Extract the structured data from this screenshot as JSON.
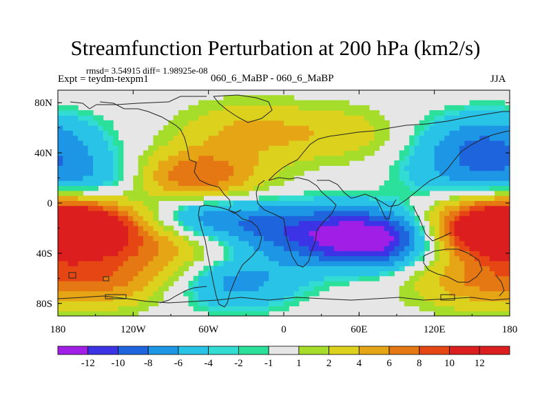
{
  "chart_data": {
    "type": "heatmap",
    "title": "Streamfunction Perturbation at 200 hPa (km2/s)",
    "rmsd_label": "rmsd= 3.54915 diff= 1.98925e-08",
    "experiment_label": "Expt = teydm-texpm1",
    "center_label": "060_6_MaBP - 060_6_MaBP",
    "season": "JJA",
    "x_ticks": [
      "180",
      "120W",
      "60W",
      "0",
      "60E",
      "120E",
      "180"
    ],
    "y_ticks": [
      "80N",
      "40N",
      "0",
      "40S",
      "80S"
    ],
    "xlim": [
      -180,
      180
    ],
    "ylim": [
      -90,
      90
    ],
    "colorbar": {
      "labels": [
        "-12",
        "-10",
        "-8",
        "-6",
        "-4",
        "-2",
        "-1",
        "1",
        "2",
        "4",
        "6",
        "8",
        "10",
        "12"
      ],
      "colors": [
        "#a01ee6",
        "#3c32e6",
        "#1e64dc",
        "#1e96e6",
        "#28c3e6",
        "#32dcd2",
        "#2ae09a",
        "#e6e6e6",
        "#a6dc2a",
        "#dcd21e",
        "#e6a514",
        "#e67814",
        "#e64614",
        "#dc1e1e"
      ]
    },
    "fields": [
      {
        "lon": -160,
        "lat": -20,
        "value": 12
      },
      {
        "lon": 165,
        "lat": -20,
        "value": 12
      },
      {
        "lon": 70,
        "lat": -28,
        "value": -12
      },
      {
        "lon": -65,
        "lat": -12,
        "value": -7
      },
      {
        "lon": 5,
        "lat": -22,
        "value": -5
      },
      {
        "lon": -72,
        "lat": 20,
        "value": 9
      },
      {
        "lon": -30,
        "lat": 58,
        "value": 4
      },
      {
        "lon": -145,
        "lat": 20,
        "value": -4
      },
      {
        "lon": 145,
        "lat": 25,
        "value": -4
      },
      {
        "lon": 160,
        "lat": 52,
        "value": -5
      },
      {
        "lon": -40,
        "lat": -62,
        "value": -5
      },
      {
        "lon": -140,
        "lat": -60,
        "value": 6
      },
      {
        "lon": -80,
        "lat": -33,
        "value": 5
      },
      {
        "lon": 150,
        "lat": -62,
        "value": 5
      },
      {
        "lon": 45,
        "lat": 55,
        "value": 3
      }
    ]
  }
}
